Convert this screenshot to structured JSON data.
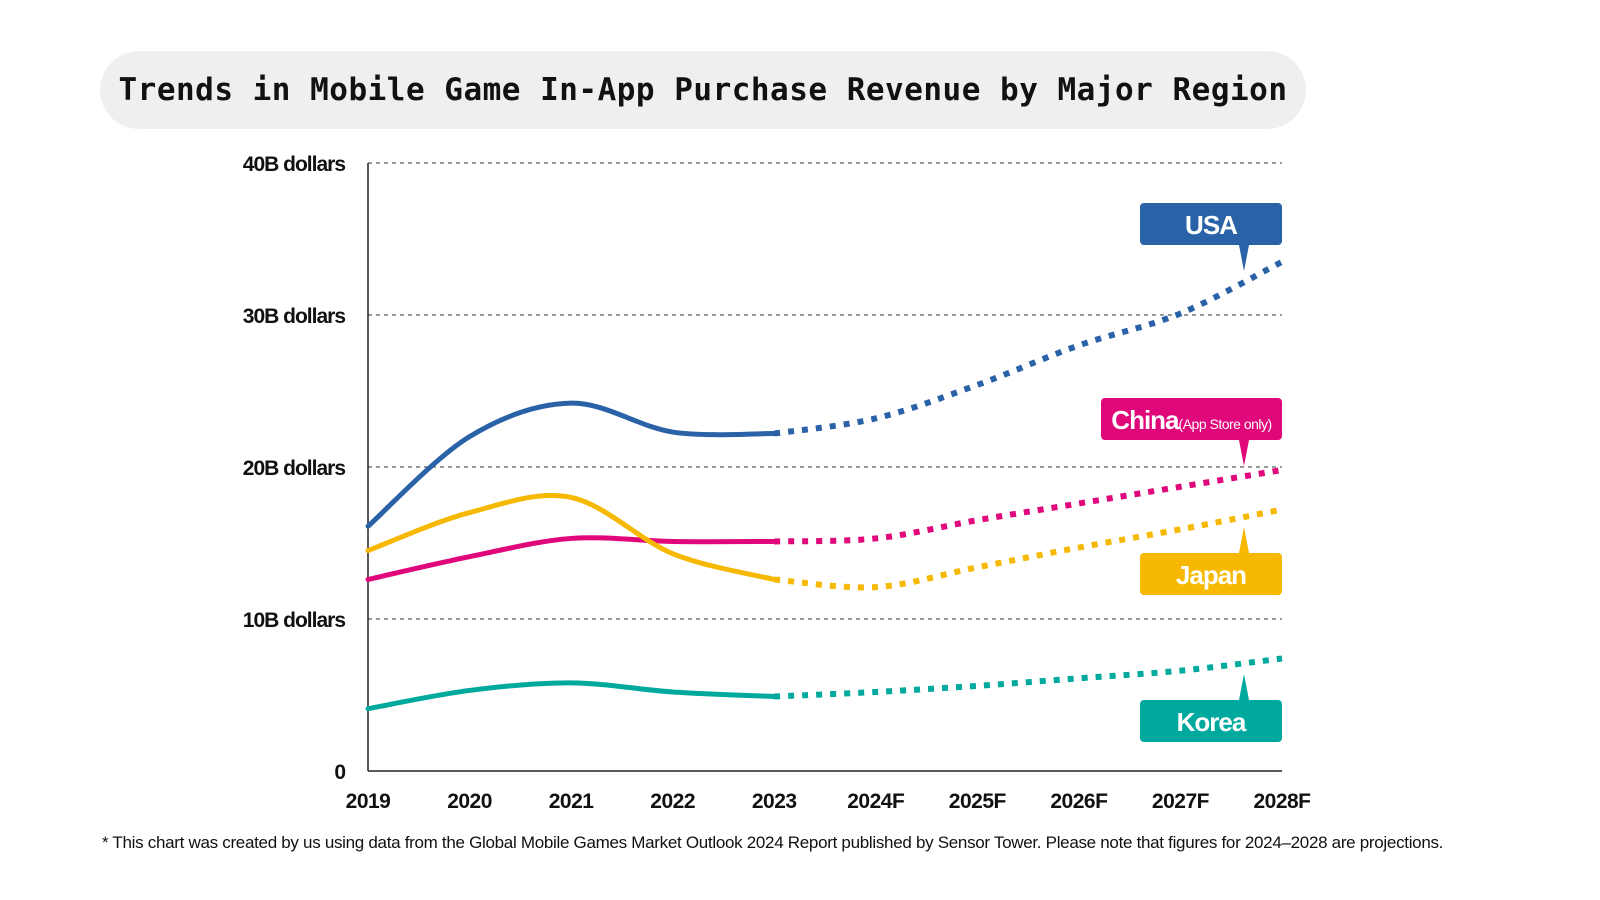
{
  "chart_data": {
    "type": "line",
    "title": "Trends in Mobile Game In-App Purchase Revenue by Major Region",
    "categories": [
      "2019",
      "2020",
      "2021",
      "2022",
      "2023",
      "2024F",
      "2025F",
      "2026F",
      "2027F",
      "2028F"
    ],
    "y_tick_labels": [
      "0",
      "10B dollars",
      "20B dollars",
      "30B dollars",
      "40B dollars"
    ],
    "y_ticks": [
      0,
      10,
      20,
      30,
      40
    ],
    "ylim": [
      0,
      40
    ],
    "unit": "billion dollars",
    "grid": "horizontal dashed",
    "projection_style": "dotted from 2023 onward",
    "series": [
      {
        "name": "USA",
        "label_suffix": "",
        "color": "#2a62a8",
        "values": [
          16.1,
          22.0,
          24.2,
          22.3,
          22.2,
          23.2,
          25.4,
          28.0,
          30.1,
          33.5
        ]
      },
      {
        "name": "China",
        "label_suffix": "(App Store only)",
        "color": "#e0077a",
        "values": [
          12.6,
          14.1,
          15.3,
          15.1,
          15.1,
          15.3,
          16.5,
          17.6,
          18.7,
          19.8
        ]
      },
      {
        "name": "Japan",
        "label_suffix": "",
        "color": "#f6b800",
        "values": [
          14.5,
          17.0,
          18.0,
          14.3,
          12.6,
          12.1,
          13.4,
          14.7,
          15.9,
          17.2
        ]
      },
      {
        "name": "Korea",
        "label_suffix": "",
        "color": "#00a99d",
        "values": [
          4.1,
          5.3,
          5.8,
          5.2,
          4.9,
          5.2,
          5.6,
          6.1,
          6.6,
          7.4
        ]
      }
    ]
  },
  "footnote": "* This chart was created by us using data from the Global Mobile Games Market Outlook 2024 Report published by Sensor Tower. Please note that figures for 2024–2028 are projections."
}
